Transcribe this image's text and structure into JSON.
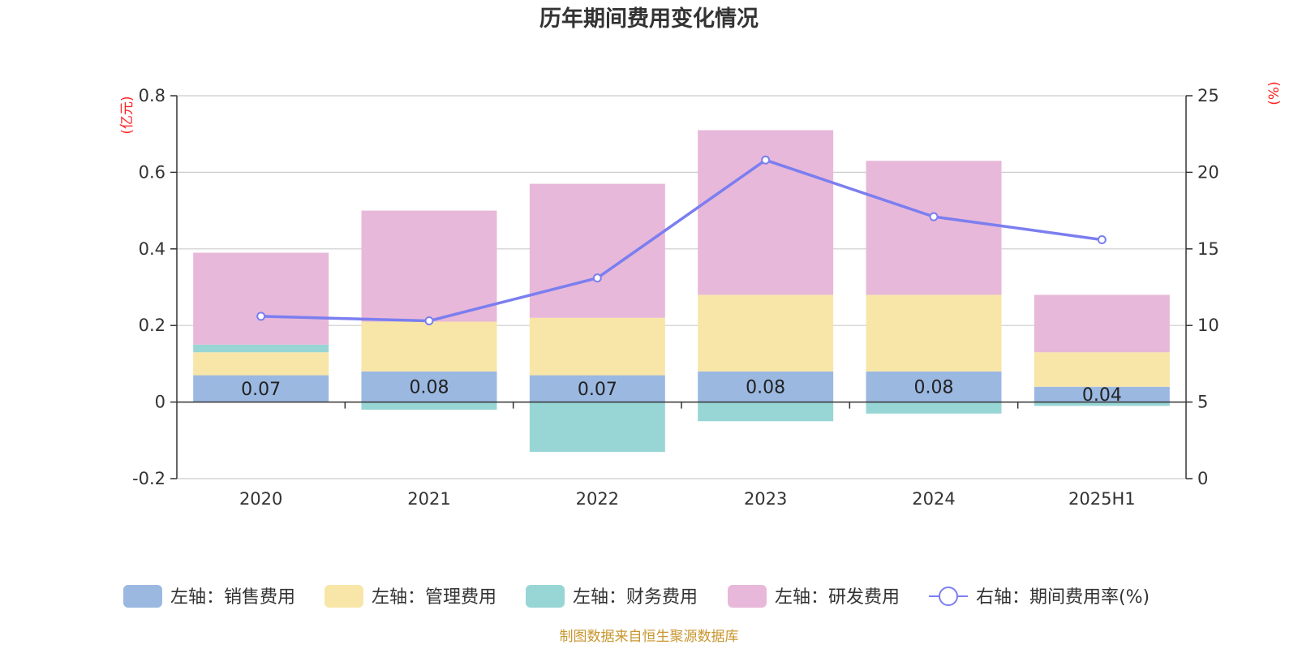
{
  "chart_data": {
    "type": "bar",
    "title": "历年期间费用变化情况",
    "categories": [
      "2020",
      "2021",
      "2022",
      "2023",
      "2024",
      "2025H1"
    ],
    "left_axis": {
      "unit": "(亿元)",
      "ylim": [
        -0.2,
        0.8
      ],
      "ticks": [
        "-0.2",
        "0",
        "0.2",
        "0.4",
        "0.6",
        "0.8"
      ],
      "tick_values": [
        -0.2,
        0,
        0.2,
        0.4,
        0.6,
        0.8
      ]
    },
    "right_axis": {
      "unit": "(%)",
      "ylim": [
        0,
        25
      ],
      "ticks": [
        "0",
        "5",
        "10",
        "15",
        "20",
        "25"
      ],
      "tick_values": [
        0,
        5,
        10,
        15,
        20,
        25
      ]
    },
    "series": [
      {
        "name": "左轴：销售费用",
        "type": "bar",
        "axis": "left",
        "color": "#9bb8e1",
        "values": [
          0.07,
          0.08,
          0.07,
          0.08,
          0.08,
          0.04
        ],
        "labels": [
          "0.07",
          "0.08",
          "0.07",
          "0.08",
          "0.08",
          "0.04"
        ]
      },
      {
        "name": "左轴：管理费用",
        "type": "bar",
        "axis": "left",
        "color": "#f8e6a8",
        "values": [
          0.06,
          0.13,
          0.15,
          0.2,
          0.2,
          0.09
        ]
      },
      {
        "name": "左轴：财务费用",
        "type": "bar",
        "axis": "left",
        "color": "#98d5d5",
        "values": [
          0.02,
          -0.02,
          -0.13,
          -0.05,
          -0.03,
          -0.01
        ]
      },
      {
        "name": "左轴：研发费用",
        "type": "bar",
        "axis": "left",
        "color": "#e7b8d9",
        "values": [
          0.24,
          0.29,
          0.35,
          0.43,
          0.35,
          0.15
        ]
      },
      {
        "name": "右轴：期间费用率(%)",
        "type": "line",
        "axis": "right",
        "color": "#7b7ef0",
        "values": [
          10.6,
          10.3,
          13.1,
          20.8,
          17.1,
          15.6
        ]
      }
    ],
    "grid": true,
    "legend_position": "bottom"
  },
  "source_note": "制图数据来自恒生聚源数据库"
}
